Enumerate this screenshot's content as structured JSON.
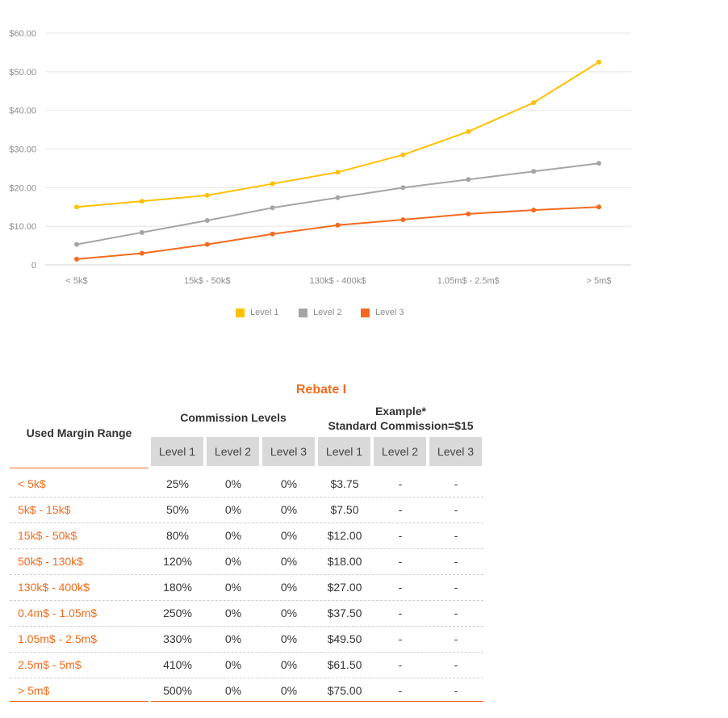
{
  "chart_data": {
    "type": "line",
    "categories": [
      "< 5k$",
      "5k$ - 15k$",
      "15k$ - 50k$",
      "50k$ - 130k$",
      "130k$ - 400k$",
      "0.4m$ - 1.05m$",
      "1.05m$ - 2.5m$",
      "2.5m$ - 5m$",
      "> 5m$"
    ],
    "x_tick_labels": [
      "< 5k$",
      "",
      "15k$ - 50k$",
      "",
      "130k$ - 400k$",
      "",
      "1.05m$ - 2.5m$",
      "",
      "> 5m$"
    ],
    "y_tick_labels": [
      "0",
      "$10.00",
      "$20.00",
      "$30.00",
      "$40.00",
      "$50.00",
      "$60.00"
    ],
    "ylim": [
      0,
      60
    ],
    "grid": true,
    "legend_position": "bottom",
    "series": [
      {
        "name": "Level 1",
        "color": "#ffc000",
        "values": [
          15.0,
          16.5,
          18.0,
          21.0,
          24.0,
          28.5,
          34.5,
          42.0,
          52.5
        ]
      },
      {
        "name": "Level 2",
        "color": "#a5a5a5",
        "values": [
          5.3,
          8.4,
          11.5,
          14.8,
          17.4,
          20.0,
          22.1,
          24.2,
          26.3
        ]
      },
      {
        "name": "Level 3",
        "color": "#f26b1d",
        "values": [
          1.5,
          3.0,
          5.3,
          8.0,
          10.3,
          11.7,
          13.2,
          14.2,
          15.0
        ]
      }
    ]
  },
  "table": {
    "title": "Rebate I",
    "used_margin_header": "Used Margin Range",
    "commission_header": "Commission Levels",
    "example_header_1": "Example*",
    "example_header_2": "Standard Commission=$15",
    "level_headers": [
      "Level 1",
      "Level 2",
      "Level 3",
      "Level 1",
      "Level 2",
      "Level 3"
    ],
    "rows": [
      {
        "range": "< 5k$",
        "l1": "25%",
        "l2": "0%",
        "l3": "0%",
        "e1": "$3.75",
        "e2": "-",
        "e3": "-"
      },
      {
        "range": "5k$ - 15k$",
        "l1": "50%",
        "l2": "0%",
        "l3": "0%",
        "e1": "$7.50",
        "e2": "-",
        "e3": "-"
      },
      {
        "range": "15k$ - 50k$",
        "l1": "80%",
        "l2": "0%",
        "l3": "0%",
        "e1": "$12.00",
        "e2": "-",
        "e3": "-"
      },
      {
        "range": "50k$ - 130k$",
        "l1": "120%",
        "l2": "0%",
        "l3": "0%",
        "e1": "$18.00",
        "e2": "-",
        "e3": "-"
      },
      {
        "range": "130k$ - 400k$",
        "l1": "180%",
        "l2": "0%",
        "l3": "0%",
        "e1": "$27.00",
        "e2": "-",
        "e3": "-"
      },
      {
        "range": "0.4m$ - 1.05m$",
        "l1": "250%",
        "l2": "0%",
        "l3": "0%",
        "e1": "$37.50",
        "e2": "-",
        "e3": "-"
      },
      {
        "range": "1.05m$ - 2.5m$",
        "l1": "330%",
        "l2": "0%",
        "l3": "0%",
        "e1": "$49.50",
        "e2": "-",
        "e3": "-"
      },
      {
        "range": "2.5m$ - 5m$",
        "l1": "410%",
        "l2": "0%",
        "l3": "0%",
        "e1": "$61.50",
        "e2": "-",
        "e3": "-"
      },
      {
        "range": "> 5m$",
        "l1": "500%",
        "l2": "0%",
        "l3": "0%",
        "e1": "$75.00",
        "e2": "-",
        "e3": "-"
      }
    ]
  }
}
